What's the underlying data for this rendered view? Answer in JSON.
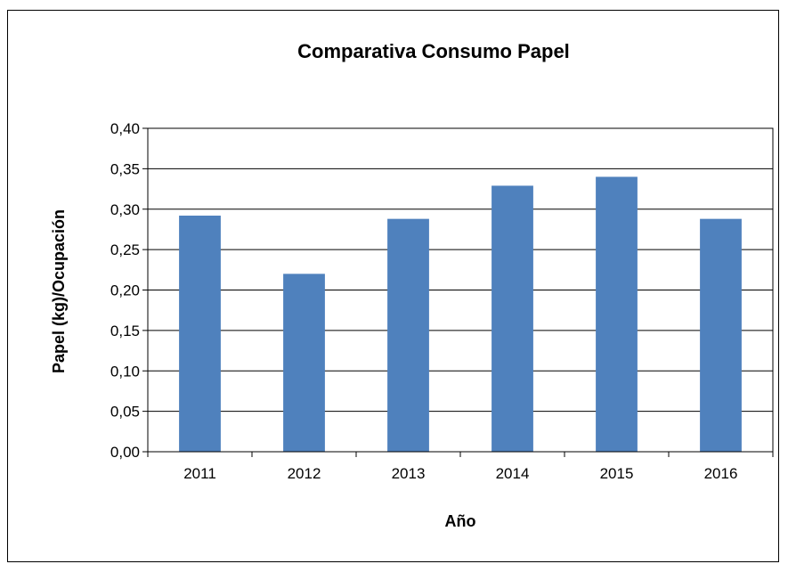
{
  "chart_data": {
    "type": "bar",
    "title": "Comparativa Consumo Papel",
    "xlabel": "Año",
    "ylabel": "Papel (kg)/Ocupación",
    "categories": [
      "2011",
      "2012",
      "2013",
      "2014",
      "2015",
      "2016"
    ],
    "values": [
      0.292,
      0.22,
      0.288,
      0.329,
      0.34,
      0.288
    ],
    "ylim": [
      0,
      0.4
    ],
    "yticks": [
      "0,00",
      "0,05",
      "0,10",
      "0,15",
      "0,20",
      "0,25",
      "0,30",
      "0,35",
      "0,40"
    ],
    "grid": true,
    "legend": "none",
    "bar_color": "#4f81bd"
  }
}
